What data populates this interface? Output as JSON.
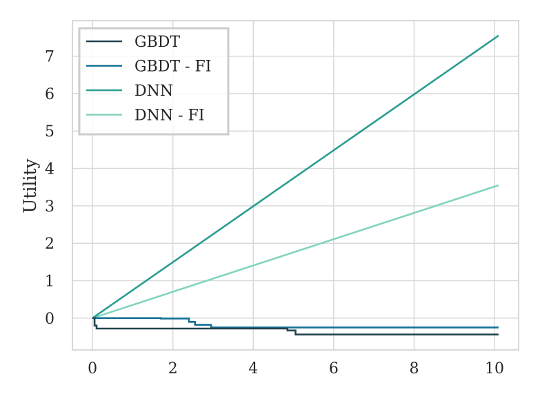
{
  "chart_data": {
    "type": "line",
    "title": "",
    "xlabel": "",
    "ylabel": "Utility",
    "xlim": [
      -0.5,
      10.6
    ],
    "ylim": [
      -0.85,
      7.95
    ],
    "xticks": [
      0,
      2,
      4,
      6,
      8,
      10
    ],
    "yticks": [
      0,
      1,
      2,
      3,
      4,
      5,
      6,
      7
    ],
    "grid": true,
    "legend_position": "top-left",
    "series": [
      {
        "name": "GBDT",
        "color": "#22424f",
        "x": [
          0,
          0.05,
          0.05,
          0.1,
          0.1,
          4.85,
          4.85,
          5.05,
          5.05,
          10.1
        ],
        "y": [
          0,
          0,
          -0.2,
          -0.2,
          -0.28,
          -0.28,
          -0.33,
          -0.33,
          -0.44,
          -0.44
        ]
      },
      {
        "name": "GBDT - FI",
        "color": "#136f94",
        "x": [
          0,
          1.7,
          1.7,
          2.4,
          2.4,
          2.55,
          2.55,
          2.95,
          2.95,
          10.1
        ],
        "y": [
          0,
          0,
          -0.01,
          -0.01,
          -0.1,
          -0.1,
          -0.18,
          -0.18,
          -0.25,
          -0.25
        ]
      },
      {
        "name": "DNN",
        "color": "#2a9d8f",
        "x": [
          0,
          10.1
        ],
        "y": [
          0,
          7.55
        ]
      },
      {
        "name": "DNN - FI",
        "color": "#82d3c0",
        "x": [
          0,
          10.1
        ],
        "y": [
          0,
          3.55
        ]
      }
    ]
  }
}
